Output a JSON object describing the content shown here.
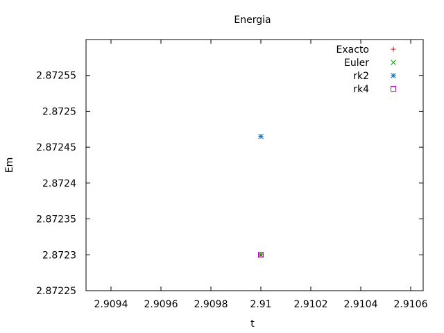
{
  "chart_data": {
    "type": "scatter",
    "title": "Energia",
    "xlabel": "t",
    "ylabel": "Em",
    "xlim": [
      2.9093,
      2.91065
    ],
    "ylim": [
      2.87225,
      2.8726
    ],
    "xticks": [
      2.9094,
      2.9096,
      2.9098,
      2.91,
      2.9102,
      2.9104,
      2.9106
    ],
    "xtick_labels": [
      "2.9094",
      "2.9096",
      "2.9098",
      "2.91",
      "2.9102",
      "2.9104",
      "2.9106"
    ],
    "yticks": [
      2.87225,
      2.8723,
      2.87235,
      2.8724,
      2.87245,
      2.8725,
      2.87255
    ],
    "ytick_labels": [
      "2.87225",
      "2.8723",
      "2.87235",
      "2.8724",
      "2.87245",
      "2.8725",
      "2.87255"
    ],
    "grid": false,
    "legend_position": "top-right",
    "series": [
      {
        "name": "Exacto",
        "marker": "plus",
        "color": "#c00000",
        "x": [
          2.91
        ],
        "y": [
          2.8723
        ]
      },
      {
        "name": "Euler",
        "marker": "cross",
        "color": "#00a000",
        "x": [
          2.91
        ],
        "y": [
          2.8723
        ]
      },
      {
        "name": "rk2",
        "marker": "star",
        "color": "#1070c0",
        "x": [
          2.91
        ],
        "y": [
          2.872465
        ]
      },
      {
        "name": "rk4",
        "marker": "square",
        "color": "#c000c0",
        "x": [
          2.91
        ],
        "y": [
          2.8723
        ]
      }
    ]
  }
}
